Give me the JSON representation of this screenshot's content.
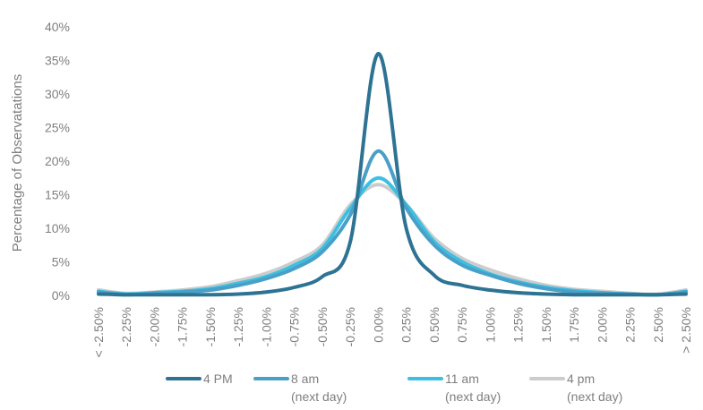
{
  "chart_data": {
    "type": "line",
    "title": "",
    "xlabel": "",
    "ylabel": "Percentage of Observatations",
    "ylim": [
      0,
      40
    ],
    "yticks": [
      "0%",
      "5%",
      "10%",
      "15%",
      "20%",
      "25%",
      "30%",
      "35%",
      "40%"
    ],
    "categories": [
      "< -2.50%",
      "-2.25%",
      "-2.00%",
      "-1.75%",
      "-1.50%",
      "-1.25%",
      "-1.00%",
      "-0.75%",
      "-0.50%",
      "-0.25%",
      "0.00%",
      "0.25%",
      "0.50%",
      "0.75%",
      "1.00%",
      "1.25%",
      "1.50%",
      "1.75%",
      "2.00%",
      "2.25%",
      "2.50%",
      "> 2.50%"
    ],
    "grid": false,
    "legend_position": "bottom",
    "series": [
      {
        "name": "4 PM",
        "sub": "",
        "color": "#2d7393",
        "values": [
          0.2,
          0.1,
          0.1,
          0.1,
          0.1,
          0.2,
          0.5,
          1.2,
          2.8,
          8,
          36,
          10,
          3,
          1.5,
          0.8,
          0.4,
          0.2,
          0.1,
          0.1,
          0.1,
          0.1,
          0.2
        ]
      },
      {
        "name": "8 am",
        "sub": "(next day)",
        "color": "#4a9fc7",
        "values": [
          0.5,
          0.1,
          0.3,
          0.5,
          0.8,
          1.5,
          2.5,
          4,
          6.5,
          12,
          21.5,
          13,
          7.5,
          4.5,
          3,
          1.8,
          1,
          0.5,
          0.3,
          0.2,
          0.1,
          0.5
        ]
      },
      {
        "name": "11 am",
        "sub": "(next day)",
        "color": "#3cc0e2",
        "values": [
          0.6,
          0.2,
          0.4,
          0.6,
          1,
          1.8,
          2.8,
          4.5,
          7,
          13,
          17.5,
          13.5,
          8,
          5,
          3.2,
          2,
          1.2,
          0.7,
          0.4,
          0.2,
          0.1,
          0.6
        ]
      },
      {
        "name": "4 pm",
        "sub": "(next day)",
        "color": "#cccccc",
        "values": [
          0.8,
          0.3,
          0.5,
          0.8,
          1.3,
          2.2,
          3.3,
          5,
          7.5,
          13.5,
          16.5,
          13.5,
          8.5,
          5.5,
          3.8,
          2.5,
          1.5,
          0.9,
          0.6,
          0.3,
          0.2,
          0.8
        ]
      }
    ]
  }
}
